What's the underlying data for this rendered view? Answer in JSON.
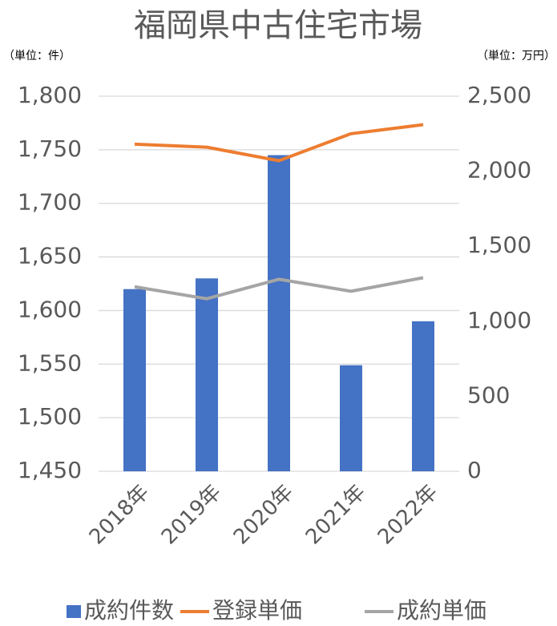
{
  "chart_data": {
    "type": "bar_line",
    "title": "福岡県中古住宅市場",
    "y_label": "（単位：件）",
    "y2_label": "（単位：万円）",
    "categories": [
      "2018年",
      "2019年",
      "2020年",
      "2021年",
      "2022年"
    ],
    "series": [
      {
        "name": "成約件数",
        "color": "#4472c4",
        "type": "bar",
        "values": [
          1620,
          1630,
          1745,
          1549,
          1590
        ]
      },
      {
        "name": "登録単価",
        "color": "#ed7d31",
        "type": "line",
        "axis": "y2",
        "values": [
          2180,
          2160,
          2070,
          2250,
          2310
        ]
      },
      {
        "name": "成約単価",
        "color": "#a5a5a5",
        "type": "line",
        "axis": "y2",
        "values": [
          1230,
          1150,
          1280,
          1200,
          1290
        ]
      }
    ],
    "ylim": [
      1450,
      1800
    ],
    "yticks": [
      {
        "value": 1450,
        "label": "1,450"
      },
      {
        "value": 1500,
        "label": "1,500"
      },
      {
        "value": 1550,
        "label": "1,550"
      },
      {
        "value": 1600,
        "label": "1,600"
      },
      {
        "value": 1650,
        "label": "1,650"
      },
      {
        "value": 1700,
        "label": "1,700"
      },
      {
        "value": 1750,
        "label": "1,750"
      },
      {
        "value": 1800,
        "label": "1,800"
      }
    ],
    "y2lim": [
      0,
      2500
    ],
    "y2ticks": [
      0,
      500,
      {
        "value": 1000,
        "label": "1,000"
      },
      {
        "value": 1500,
        "label": "1,500"
      },
      {
        "value": 2000,
        "label": "2,000"
      },
      {
        "value": 2500,
        "label": "2,500"
      }
    ],
    "grid": true,
    "legend": "bottom"
  }
}
